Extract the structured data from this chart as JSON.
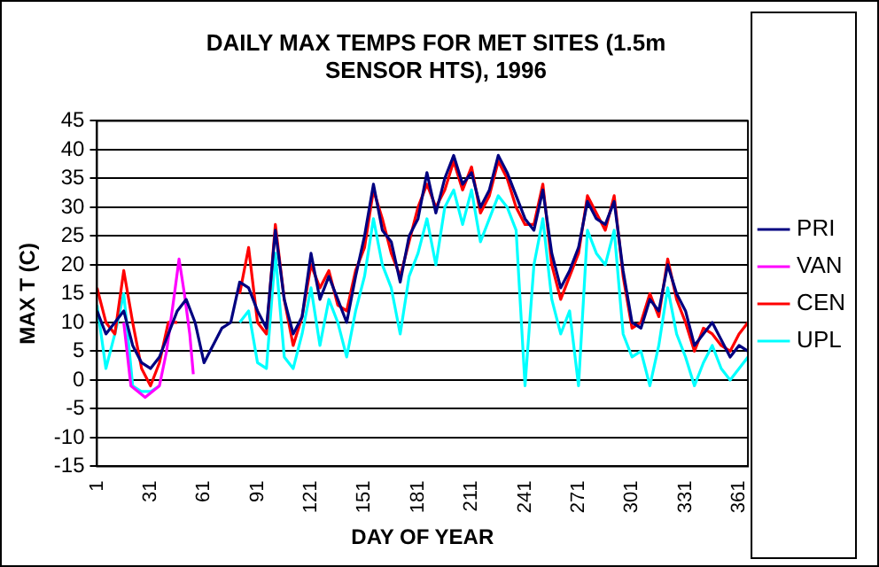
{
  "chart_data": {
    "type": "line",
    "title": "DAILY MAX TEMPS FOR MET SITES (1.5m SENSOR HTS), 1996",
    "xlabel": "DAY OF YEAR",
    "ylabel": "MAX T (C)",
    "x": [
      1,
      6,
      11,
      16,
      21,
      26,
      31,
      36,
      41,
      46,
      51,
      56,
      61,
      66,
      71,
      76,
      81,
      86,
      91,
      96,
      101,
      106,
      111,
      116,
      121,
      126,
      131,
      136,
      141,
      146,
      151,
      156,
      161,
      166,
      171,
      176,
      181,
      186,
      191,
      196,
      201,
      206,
      211,
      216,
      221,
      226,
      231,
      236,
      241,
      246,
      251,
      256,
      261,
      266,
      271,
      276,
      281,
      286,
      291,
      296,
      301,
      306,
      311,
      316,
      321,
      326,
      331,
      336,
      341,
      346,
      351,
      356,
      361,
      366
    ],
    "series": [
      {
        "name": "PRI",
        "color": "#000080",
        "values": [
          12,
          8,
          10,
          12,
          6,
          3,
          2,
          4,
          8,
          12,
          14,
          10,
          3,
          6,
          9,
          10,
          17,
          16,
          12,
          9,
          26,
          14,
          8,
          11,
          22,
          14,
          18,
          14,
          10,
          18,
          25,
          34,
          26,
          24,
          17,
          25,
          28,
          36,
          29,
          35,
          39,
          34,
          36,
          30,
          33,
          39,
          36,
          32,
          28,
          26,
          33,
          22,
          16,
          19,
          23,
          31,
          28,
          27,
          31,
          19,
          10,
          9,
          14,
          12,
          20,
          15,
          12,
          6,
          8,
          10,
          7,
          4,
          6,
          5
        ]
      },
      {
        "name": "VAN",
        "color": "#ff00ff",
        "x": [
          16,
          20,
          24,
          28,
          32,
          36,
          40,
          44,
          47,
          50,
          53,
          55
        ],
        "values": [
          10,
          -1,
          -2,
          -3,
          -2,
          -1,
          5,
          14,
          21,
          15,
          8,
          1
        ]
      },
      {
        "name": "CEN",
        "color": "#ff0000",
        "values": [
          16,
          10,
          8,
          19,
          10,
          2,
          -1,
          3,
          10,
          10,
          null,
          null,
          null,
          null,
          null,
          null,
          15,
          23,
          10,
          8,
          27,
          14,
          6,
          11,
          20,
          16,
          19,
          13,
          12,
          19,
          23,
          33,
          28,
          22,
          18,
          24,
          30,
          34,
          30,
          33,
          38,
          33,
          37,
          29,
          32,
          38,
          35,
          30,
          27,
          27,
          34,
          20,
          14,
          18,
          22,
          32,
          29,
          26,
          32,
          18,
          9,
          10,
          15,
          11,
          21,
          14,
          10,
          5,
          9,
          8,
          6,
          5,
          8,
          10
        ]
      },
      {
        "name": "UPL",
        "color": "#00ffff",
        "values": [
          13,
          2,
          8,
          15,
          -1,
          -2,
          -2,
          -1,
          null,
          null,
          null,
          null,
          null,
          null,
          null,
          null,
          10,
          12,
          3,
          2,
          22,
          4,
          2,
          8,
          16,
          6,
          14,
          10,
          4,
          12,
          18,
          28,
          20,
          16,
          8,
          18,
          22,
          28,
          20,
          30,
          33,
          27,
          33,
          24,
          28,
          32,
          30,
          26,
          -1,
          20,
          28,
          14,
          8,
          12,
          -1,
          26,
          22,
          20,
          26,
          8,
          4,
          5,
          -1,
          6,
          16,
          8,
          4,
          -1,
          3,
          6,
          2,
          0,
          2,
          4
        ]
      }
    ],
    "xlim": [
      1,
      366
    ],
    "xticks": [
      1,
      31,
      61,
      91,
      121,
      151,
      181,
      211,
      241,
      271,
      301,
      331,
      361
    ],
    "ylim": [
      -15,
      45
    ],
    "yticks": [
      -15,
      -10,
      -5,
      0,
      5,
      10,
      15,
      20,
      25,
      30,
      35,
      40,
      45
    ],
    "grid": "y",
    "legend": "right"
  }
}
